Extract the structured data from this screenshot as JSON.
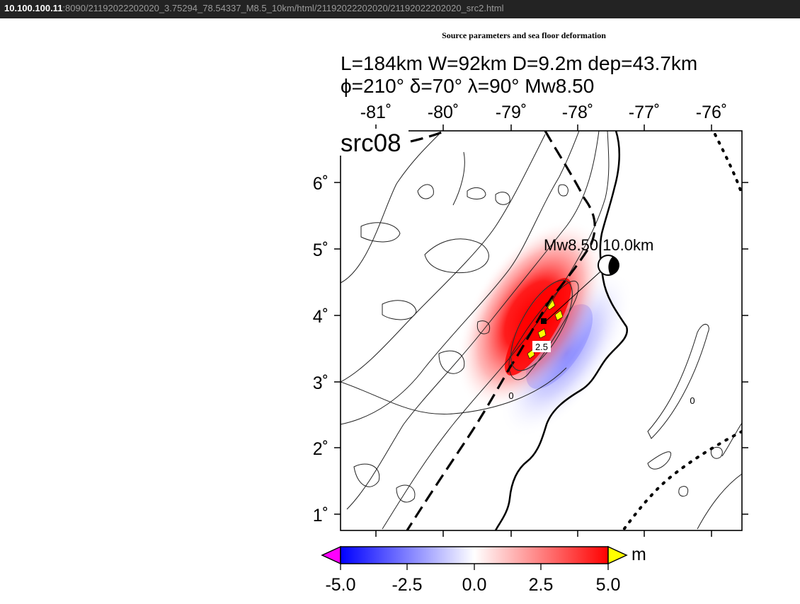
{
  "browser": {
    "url_host": "10.100.100.11",
    "url_rest": ":8090/21192022202020_3.75294_78.54337_M8.5_10km/html/21192022202020/21192022202020_src2.html"
  },
  "page": {
    "title": "Source parameters and sea floor deformation"
  },
  "figure": {
    "header_line1": "L=184km W=92km D=9.2m dep=43.7km",
    "header_line2": "ϕ=210° δ=70° λ=90° Mw8.50",
    "source_label": "src08",
    "epicenter_label": "Mw8.50  10.0km",
    "lon_ticks": [
      "-81˚",
      "-80˚",
      "-79˚",
      "-78˚",
      "-77˚",
      "-76˚"
    ],
    "lat_ticks": [
      "6˚",
      "5˚",
      "4˚",
      "3˚",
      "2˚",
      "1˚"
    ],
    "contour_labels": [
      "2.5",
      "0",
      "0"
    ],
    "colorbar": {
      "unit": "m",
      "tick_labels": [
        "-5.0",
        "-2.5",
        "0.0",
        "2.5",
        "5.0"
      ],
      "min": -5.0,
      "max": 5.0,
      "colors": {
        "negative": "#0000ff",
        "zero": "#ffffff",
        "positive": "#ff0000",
        "under": "#ff00ff",
        "over": "#ffff00"
      }
    }
  },
  "colors": {
    "uplift": "#ff0000",
    "subsidence": "#0000ff",
    "line": "#000000"
  }
}
